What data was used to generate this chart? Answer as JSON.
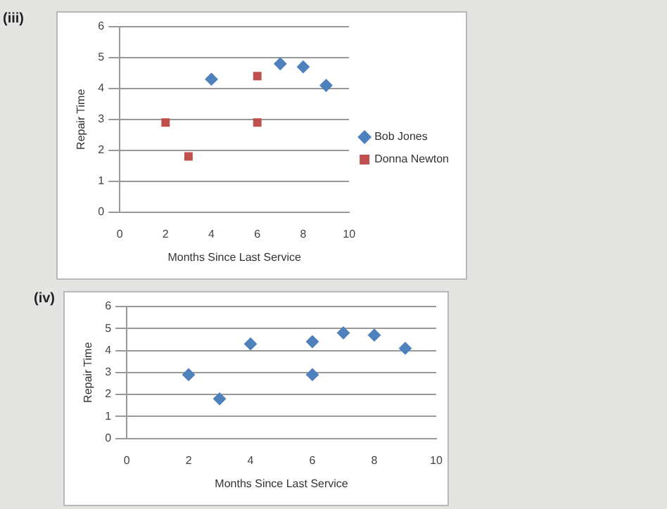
{
  "chart_data": [
    {
      "type": "scatter",
      "title": "(iii)",
      "xlabel": "Months Since Last Service",
      "ylabel": "Repair Time",
      "xlim": [
        0,
        10
      ],
      "xticks": [
        0,
        2,
        4,
        6,
        8,
        10
      ],
      "ylim": [
        0,
        6
      ],
      "yticks": [
        0,
        1,
        2,
        3,
        4,
        5,
        6
      ],
      "grid": "y",
      "legend": "right",
      "series": [
        {
          "name": "Bob Jones",
          "color": "#4f81bd",
          "marker": "diamond",
          "x": [
            4,
            7,
            8,
            9
          ],
          "values": [
            4.3,
            4.8,
            4.7,
            4.1
          ]
        },
        {
          "name": "Donna Newton",
          "color": "#c0504d",
          "marker": "square",
          "x": [
            2,
            3,
            6,
            6
          ],
          "values": [
            2.9,
            1.8,
            4.4,
            2.9
          ]
        }
      ]
    },
    {
      "type": "scatter",
      "title": "(iv)",
      "xlabel": "Months Since Last Service",
      "ylabel": "Repair Time",
      "xlim": [
        0,
        10
      ],
      "xticks": [
        0,
        2,
        4,
        6,
        8,
        10
      ],
      "ylim": [
        0,
        6
      ],
      "yticks": [
        0,
        1,
        2,
        3,
        4,
        5,
        6
      ],
      "grid": "y",
      "legend": false,
      "series": [
        {
          "color": "#4f81bd",
          "marker": "diamond",
          "x": [
            2,
            3,
            4,
            6,
            6,
            7,
            8,
            9
          ],
          "values": [
            2.9,
            1.8,
            4.3,
            4.4,
            2.9,
            4.8,
            4.7,
            4.1
          ]
        }
      ]
    }
  ]
}
